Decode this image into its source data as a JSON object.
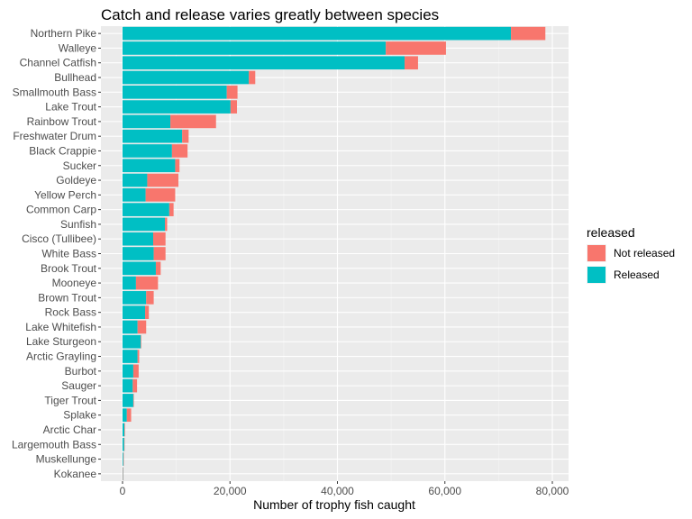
{
  "chart_data": {
    "type": "bar",
    "orientation": "horizontal",
    "stacked": true,
    "title": "Catch and release varies greatly between species",
    "xlabel": "Number of trophy fish caught",
    "ylabel": "",
    "xlim": [
      0,
      82000
    ],
    "x_ticks": [
      0,
      20000,
      40000,
      60000,
      80000
    ],
    "x_tick_labels": [
      "0",
      "20,000",
      "40,000",
      "60,000",
      "80,000"
    ],
    "grid": true,
    "legend_position": "right",
    "legend_title": "released",
    "categories": [
      "Northern Pike",
      "Walleye",
      "Channel Catfish",
      "Bullhead",
      "Smallmouth Bass",
      "Lake Trout",
      "Rainbow Trout",
      "Freshwater Drum",
      "Black Crappie",
      "Sucker",
      "Goldeye",
      "Yellow Perch",
      "Common Carp",
      "Sunfish",
      "Cisco (Tullibee)",
      "White Bass",
      "Brook Trout",
      "Mooneye",
      "Brown Trout",
      "Rock Bass",
      "Lake Whitefish",
      "Lake Sturgeon",
      "Arctic Grayling",
      "Burbot",
      "Sauger",
      "Tiger Trout",
      "Splake",
      "Arctic Char",
      "Largemouth Bass",
      "Muskellunge",
      "Kokanee"
    ],
    "series": [
      {
        "name": "Released",
        "color": "#00BFC4",
        "values": [
          72300,
          49000,
          52500,
          23500,
          19400,
          20100,
          8900,
          11100,
          9200,
          9800,
          4600,
          4300,
          8700,
          7900,
          5700,
          5800,
          6200,
          2500,
          4400,
          4200,
          2800,
          3400,
          2800,
          2000,
          1900,
          2000,
          800,
          350,
          300,
          150,
          60
        ]
      },
      {
        "name": "Not released",
        "color": "#F8766D",
        "values": [
          6400,
          11200,
          2500,
          1200,
          2000,
          1200,
          8500,
          1200,
          2900,
          800,
          5800,
          5500,
          800,
          400,
          2300,
          2200,
          900,
          4100,
          1400,
          700,
          1600,
          100,
          300,
          1000,
          800,
          100,
          800,
          100,
          50,
          30,
          20
        ]
      }
    ]
  }
}
